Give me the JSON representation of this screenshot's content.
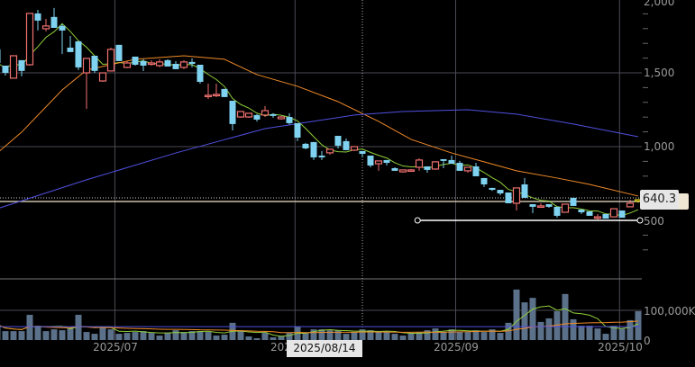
{
  "chart_data": {
    "type": "candlestick",
    "price_axis": {
      "ticks": [
        {
          "value": 2000,
          "label": "2,000"
        },
        {
          "value": 1500,
          "label": "1,500"
        },
        {
          "value": 1000,
          "label": "1,000"
        },
        {
          "value": 500,
          "label": "500"
        }
      ],
      "range": [
        300,
        2000
      ]
    },
    "volume_axis": {
      "ticks": [
        {
          "value": 100000,
          "label": "100,000K"
        },
        {
          "value": 0,
          "label": "0"
        }
      ],
      "unit": "K"
    },
    "x_labels": [
      {
        "index": 14.5,
        "label": "2025/07"
      },
      {
        "index": 36.7,
        "label": "2025/08"
      },
      {
        "index": 56.5,
        "label": "2025/09"
      },
      {
        "index": 76.7,
        "label": "2025/10"
      }
    ],
    "crosshair": {
      "index": 45,
      "date_label": "2025/08/14",
      "hidden_label": "202"
    },
    "current_price": {
      "value": 640.3,
      "label": "640.3"
    },
    "drawn_line": {
      "price": 500,
      "from_index": 51.8,
      "to_index": 79
    },
    "candles_ohlc": [
      [
        1660,
        1670,
        1565,
        1567
      ],
      [
        1549,
        1549,
        1482,
        1500
      ],
      [
        1464,
        1616,
        1464,
        1616
      ],
      [
        1586,
        1586,
        1476,
        1513
      ],
      [
        1555,
        1903,
        1549,
        1903
      ],
      [
        1903,
        1927,
        1787,
        1854
      ],
      [
        1799,
        1866,
        1781,
        1818
      ],
      [
        1879,
        1940,
        1805,
        1805
      ],
      [
        1818,
        1830,
        1628,
        1787
      ],
      [
        1671,
        1750,
        1641,
        1641
      ],
      [
        1714,
        1714,
        1519,
        1537
      ],
      [
        1500,
        1598,
        1256,
        1598
      ],
      [
        1616,
        1616,
        1500,
        1513
      ],
      [
        1445,
        1500,
        1439,
        1500
      ],
      [
        1513,
        1671,
        1513,
        1659
      ],
      [
        1690,
        1690,
        1580,
        1580
      ],
      [
        1537,
        1580,
        1531,
        1567
      ],
      [
        1610,
        1610,
        1549,
        1555
      ],
      [
        1580,
        1592,
        1512,
        1549
      ],
      [
        1567,
        1585,
        1549,
        1567
      ],
      [
        1549,
        1592,
        1537,
        1574
      ],
      [
        1586,
        1592,
        1549,
        1543
      ],
      [
        1561,
        1580,
        1525,
        1525
      ],
      [
        1537,
        1586,
        1525,
        1574
      ],
      [
        1574,
        1598,
        1537,
        1561
      ],
      [
        1555,
        1555,
        1427,
        1439
      ],
      [
        1342,
        1427,
        1323,
        1348
      ],
      [
        1348,
        1427,
        1336,
        1354
      ],
      [
        1391,
        1391,
        1336,
        1336
      ],
      [
        1311,
        1311,
        1110,
        1153
      ],
      [
        1201,
        1238,
        1195,
        1238
      ],
      [
        1201,
        1226,
        1195,
        1226
      ],
      [
        1214,
        1220,
        1170,
        1183
      ],
      [
        1214,
        1275,
        1201,
        1244
      ],
      [
        1220,
        1226,
        1195,
        1208
      ],
      [
        1189,
        1208,
        1183,
        1201
      ],
      [
        1201,
        1226,
        1150,
        1159
      ],
      [
        1159,
        1159,
        1037,
        1061
      ],
      [
        1019,
        1025,
        982,
        988
      ],
      [
        1031,
        1031,
        909,
        927
      ],
      [
        939,
        970,
        909,
        927
      ],
      [
        958,
        982,
        945,
        982
      ],
      [
        1073,
        1073,
        988,
        1006
      ],
      [
        1037,
        1055,
        976,
        976
      ],
      [
        976,
        1000,
        970,
        1000
      ],
      [
        970,
        970,
        927,
        951
      ],
      [
        939,
        939,
        860,
        872
      ],
      [
        884,
        903,
        836,
        903
      ],
      [
        909,
        909,
        872,
        890
      ],
      [
        854,
        860,
        836,
        836
      ],
      [
        829,
        842,
        823,
        842
      ],
      [
        842,
        848,
        836,
        842
      ],
      [
        860,
        921,
        836,
        909
      ],
      [
        866,
        866,
        823,
        842
      ],
      [
        848,
        897,
        842,
        897
      ],
      [
        915,
        915,
        854,
        903
      ],
      [
        909,
        939,
        884,
        884
      ],
      [
        890,
        903,
        836,
        836
      ],
      [
        836,
        860,
        823,
        860
      ],
      [
        866,
        890,
        799,
        799
      ],
      [
        787,
        787,
        726,
        744
      ],
      [
        720,
        720,
        700,
        707
      ],
      [
        707,
        707,
        671,
        683
      ],
      [
        689,
        689,
        616,
        616
      ],
      [
        616,
        720,
        567,
        720
      ],
      [
        744,
        787,
        653,
        653
      ],
      [
        610,
        610,
        549,
        592
      ],
      [
        598,
        616,
        585,
        598
      ],
      [
        610,
        610,
        585,
        592
      ],
      [
        592,
        592,
        518,
        531
      ],
      [
        555,
        610,
        555,
        610
      ],
      [
        653,
        653,
        598,
        598
      ],
      [
        573,
        573,
        543,
        555
      ],
      [
        561,
        561,
        531,
        531
      ],
      [
        524,
        543,
        506,
        524
      ],
      [
        543,
        543,
        512,
        512
      ],
      [
        524,
        579,
        524,
        579
      ],
      [
        567,
        567,
        518,
        518
      ],
      [
        592,
        640,
        592,
        616
      ],
      [
        630,
        645,
        620,
        640
      ]
    ],
    "volume_k": [
      51,
      30,
      30,
      30,
      85,
      48,
      30,
      36,
      33,
      42,
      85,
      27,
      21,
      42,
      36,
      21,
      24,
      27,
      30,
      24,
      15,
      24,
      33,
      27,
      30,
      30,
      27,
      15,
      18,
      58,
      33,
      12,
      6,
      24,
      9,
      12,
      24,
      45,
      24,
      36,
      36,
      33,
      33,
      21,
      27,
      36,
      33,
      27,
      27,
      21,
      15,
      24,
      27,
      33,
      39,
      27,
      36,
      27,
      27,
      33,
      27,
      36,
      24,
      58,
      170,
      127,
      142,
      61,
      73,
      97,
      155,
      70,
      48,
      48,
      39,
      21,
      48,
      39,
      67,
      97
    ],
    "ma_medium": {
      "index": [
        0,
        3,
        8,
        11,
        17,
        23,
        28,
        32,
        37,
        42,
        47,
        51,
        56,
        60,
        64,
        69,
        73,
        79
      ],
      "values": [
        957,
        1098,
        1384,
        1519,
        1592,
        1616,
        1592,
        1488,
        1409,
        1305,
        1171,
        1049,
        957,
        897,
        836,
        787,
        744,
        665
      ]
    },
    "ma_long": {
      "index": [
        0,
        11,
        22,
        33,
        44,
        50,
        58,
        64,
        71,
        79
      ],
      "values": [
        579,
        775,
        957,
        1122,
        1214,
        1238,
        1250,
        1220,
        1153,
        1067
      ]
    },
    "volume_ma_long_k": 45,
    "colors": {
      "up": "#f07070",
      "down": "#7fd3f0",
      "last": "#e0d020",
      "ma_short": "#8fce3a",
      "ma_medium": "#f08a28",
      "ma_long": "#5050e0",
      "volume": "#5b7089"
    }
  }
}
